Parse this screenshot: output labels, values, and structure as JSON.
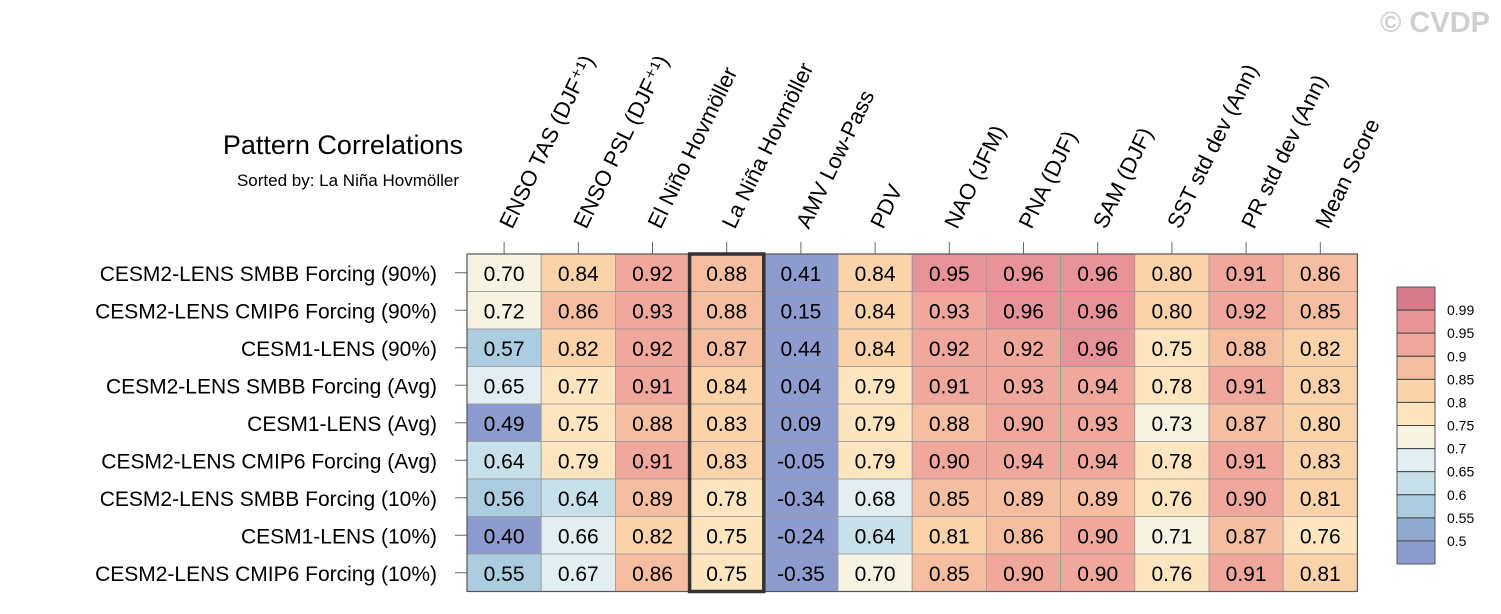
{
  "watermark": "© CVDP",
  "chart_data": {
    "type": "heatmap",
    "title": "Pattern Correlations",
    "subtitle": "Sorted by: La Niña Hovmöller",
    "columns": [
      "ENSO TAS (DJF⁺¹)",
      "ENSO PSL (DJF⁺¹)",
      "El Niño Hovmöller",
      "La Niña Hovmöller",
      "AMV Low-Pass",
      "PDV",
      "NAO (JFM)",
      "PNA (DJF)",
      "SAM (DJF)",
      "SST std dev (Ann)",
      "PR std dev (Ann)",
      "Mean Score"
    ],
    "rows": [
      "CESM2-LENS SMBB Forcing (90%)",
      "CESM2-LENS CMIP6 Forcing (90%)",
      "CESM1-LENS (90%)",
      "CESM2-LENS SMBB Forcing (Avg)",
      "CESM1-LENS (Avg)",
      "CESM2-LENS CMIP6 Forcing (Avg)",
      "CESM2-LENS SMBB Forcing (10%)",
      "CESM1-LENS (10%)",
      "CESM2-LENS CMIP6 Forcing (10%)"
    ],
    "values": [
      [
        "0.70",
        "0.84",
        "0.92",
        "0.88",
        "0.41",
        "0.84",
        "0.95",
        "0.96",
        "0.96",
        "0.80",
        "0.91",
        "0.86"
      ],
      [
        "0.72",
        "0.86",
        "0.93",
        "0.88",
        "0.15",
        "0.84",
        "0.93",
        "0.96",
        "0.96",
        "0.80",
        "0.92",
        "0.85"
      ],
      [
        "0.57",
        "0.82",
        "0.92",
        "0.87",
        "0.44",
        "0.84",
        "0.92",
        "0.92",
        "0.96",
        "0.75",
        "0.88",
        "0.82"
      ],
      [
        "0.65",
        "0.77",
        "0.91",
        "0.84",
        "0.04",
        "0.79",
        "0.91",
        "0.93",
        "0.94",
        "0.78",
        "0.91",
        "0.83"
      ],
      [
        "0.49",
        "0.75",
        "0.88",
        "0.83",
        "0.09",
        "0.79",
        "0.88",
        "0.90",
        "0.93",
        "0.73",
        "0.87",
        "0.80"
      ],
      [
        "0.64",
        "0.79",
        "0.91",
        "0.83",
        "-0.05",
        "0.79",
        "0.90",
        "0.94",
        "0.94",
        "0.78",
        "0.91",
        "0.83"
      ],
      [
        "0.56",
        "0.64",
        "0.89",
        "0.78",
        "-0.34",
        "0.68",
        "0.85",
        "0.89",
        "0.89",
        "0.76",
        "0.90",
        "0.81"
      ],
      [
        "0.40",
        "0.66",
        "0.82",
        "0.75",
        "-0.24",
        "0.64",
        "0.81",
        "0.86",
        "0.90",
        "0.71",
        "0.87",
        "0.76"
      ],
      [
        "0.55",
        "0.67",
        "0.86",
        "0.75",
        "-0.35",
        "0.70",
        "0.85",
        "0.90",
        "0.90",
        "0.76",
        "0.91",
        "0.81"
      ]
    ],
    "highlighted_column": "La Niña Hovmöller",
    "colorbar": {
      "ticks": [
        "0.99",
        "0.95",
        "0.9",
        "0.85",
        "0.8",
        "0.75",
        "0.7",
        "0.65",
        "0.6",
        "0.55",
        "0.5"
      ],
      "bins": [
        {
          "min": 0.99,
          "color": "#d67b8a"
        },
        {
          "min": 0.95,
          "color": "#e8929a"
        },
        {
          "min": 0.9,
          "color": "#f0a89c"
        },
        {
          "min": 0.85,
          "color": "#f6bea0"
        },
        {
          "min": 0.8,
          "color": "#fad3aa"
        },
        {
          "min": 0.75,
          "color": "#fde6bf"
        },
        {
          "min": 0.7,
          "color": "#f7f3e3"
        },
        {
          "min": 0.65,
          "color": "#e2eef2"
        },
        {
          "min": 0.6,
          "color": "#c8e0ea"
        },
        {
          "min": 0.55,
          "color": "#acccdf"
        },
        {
          "min": 0.5,
          "color": "#90a9d1"
        },
        {
          "min": -9,
          "color": "#8e9bcf"
        }
      ]
    }
  }
}
